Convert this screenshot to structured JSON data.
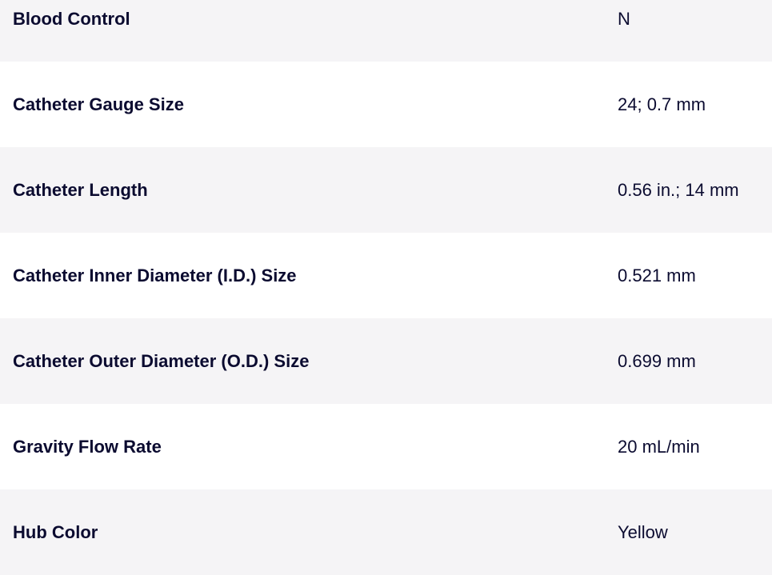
{
  "specs": [
    {
      "label": "Blood Control",
      "value": "N"
    },
    {
      "label": "Catheter Gauge Size",
      "value": "24; 0.7 mm"
    },
    {
      "label": "Catheter Length",
      "value": "0.56 in.; 14 mm"
    },
    {
      "label": "Catheter Inner Diameter (I.D.) Size",
      "value": "0.521 mm"
    },
    {
      "label": "Catheter Outer Diameter (O.D.) Size",
      "value": "0.699 mm"
    },
    {
      "label": "Gravity Flow Rate",
      "value": "20 mL/min"
    },
    {
      "label": "Hub Color",
      "value": "Yellow"
    }
  ]
}
